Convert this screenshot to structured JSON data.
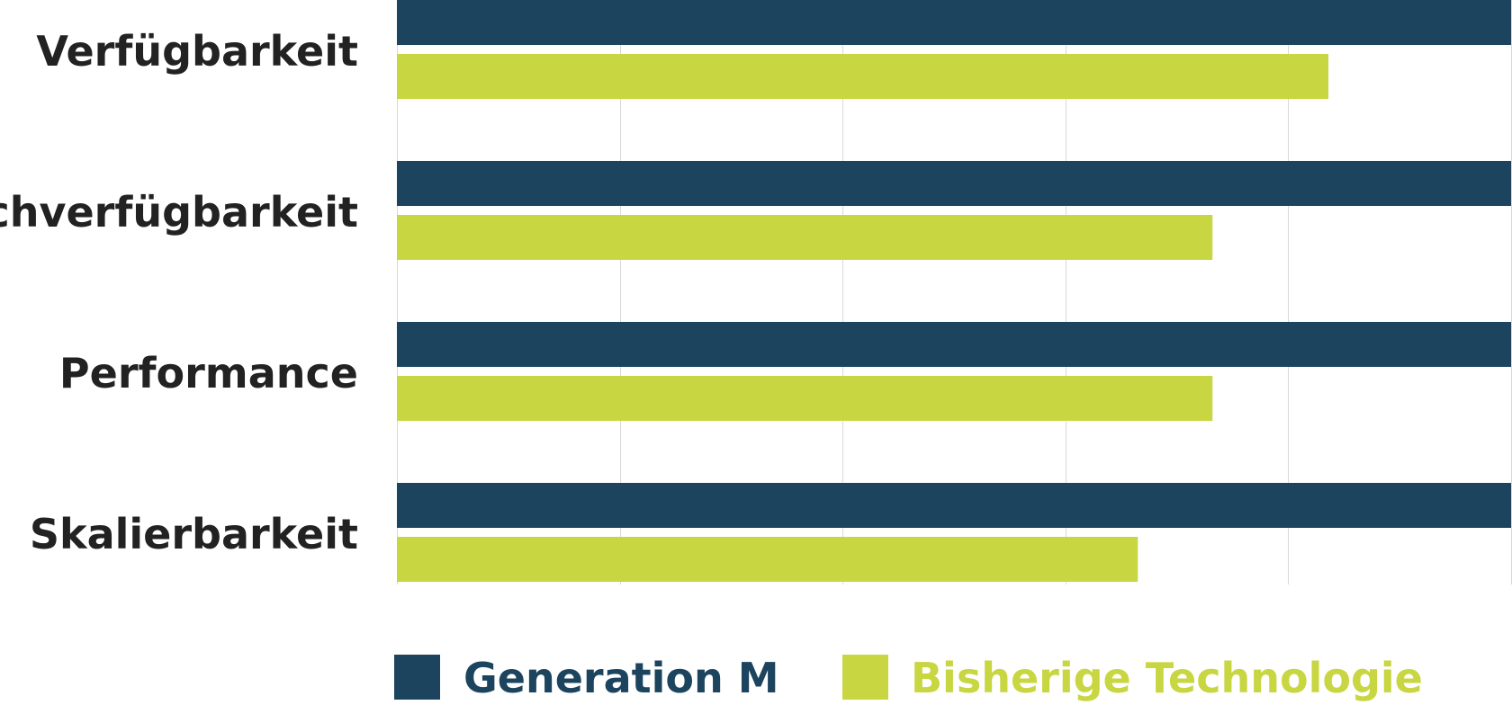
{
  "chart_data": {
    "type": "bar",
    "orientation": "horizontal",
    "categories": [
      "Verfügbarkeit",
      "Hochverfügbarkeit",
      "Performance",
      "Skalierbarkeit"
    ],
    "series": [
      {
        "name": "Generation M",
        "color": "#1d445e",
        "values": [
          100,
          100,
          100,
          100
        ]
      },
      {
        "name": "Bisherige Technologie",
        "color": "#c8d641",
        "values": [
          83.6,
          73.2,
          73.2,
          66.5
        ]
      }
    ],
    "xlim": [
      0,
      100
    ],
    "grid": true,
    "legend_position": "bottom"
  }
}
